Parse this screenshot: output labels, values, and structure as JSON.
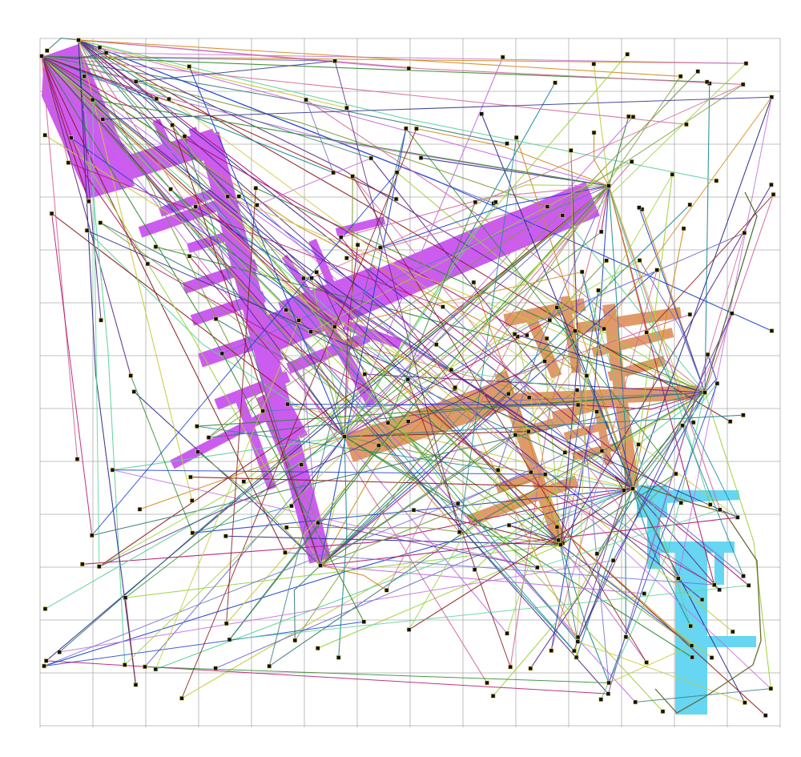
{
  "figure": {
    "title": "",
    "background": "#ffffff",
    "grid": {
      "visible": true,
      "color": "#9a9a9a"
    }
  },
  "colors": {
    "region_purple": "#cc5cf0",
    "region_orange": "#e09a6a",
    "region_cyan": "#66d6f2",
    "node_fill": "#111111",
    "node_outline": "#e0d060",
    "edge_palette": [
      "#1a3fcf",
      "#2a8a2a",
      "#b0106a",
      "#8a1a1a",
      "#c26cdf",
      "#5bd29a",
      "#d28a1a",
      "#7a9a3a",
      "#1a8a9a",
      "#9ad23a",
      "#5a2a8a",
      "#2a2a8a",
      "#d26a9a",
      "#3a7a7a",
      "#c8c83a",
      "#7070cf"
    ]
  },
  "chart_data": {
    "type": "network",
    "title": "",
    "regions": [
      {
        "name": "",
        "color": "purple"
      },
      {
        "name": "",
        "color": "orange"
      },
      {
        "name": "",
        "color": "cyan"
      }
    ]
  }
}
